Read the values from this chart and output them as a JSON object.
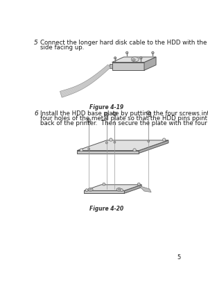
{
  "bg_color": "#ffffff",
  "step5_number": "5",
  "step5_text_line1": "Connect the longer hard disk cable to the HDD with the keyed",
  "step5_text_line2": "side facing up.",
  "fig419_caption": "Figure 4-19",
  "step6_number": "6",
  "step6_text_line1": "Install the HDD base plate by putting the four screws into the",
  "step6_text_line2": "four holes of the metal plate so that the HDD pins point to the",
  "step6_text_line3": "back of the printer.  Then secure the plate with the four screws.",
  "fig420_caption": "Figure 4-20",
  "page_num": "5",
  "text_color": "#1a1a1a",
  "caption_color": "#333333",
  "edge_color": "#555555",
  "face_light": "#e0e0e0",
  "face_mid": "#c8c8c8",
  "face_dark": "#aaaaaa",
  "face_darker": "#909090"
}
